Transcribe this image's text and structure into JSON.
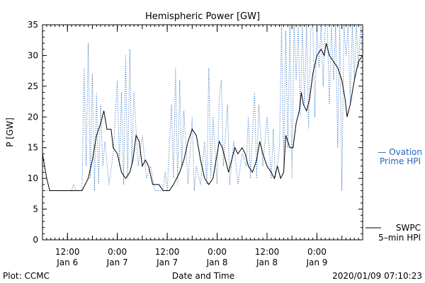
{
  "chart_data": {
    "type": "line",
    "title": "Hemispheric Power [GW]",
    "xlabel": "Date and Time",
    "ylabel": "P [GW]",
    "ylim": [
      0,
      35
    ],
    "yticks": [
      0,
      5,
      10,
      15,
      20,
      25,
      30,
      35
    ],
    "xlim": [
      "2020-01-06 06:00",
      "2020-01-09 11:00"
    ],
    "xticks": [
      {
        "t": "2020-01-06 12:00",
        "line1": "12:00",
        "line2": "Jan 6"
      },
      {
        "t": "2020-01-07 00:00",
        "line1": "0:00",
        "line2": "Jan 7"
      },
      {
        "t": "2020-01-07 12:00",
        "line1": "12:00",
        "line2": "Jan 7"
      },
      {
        "t": "2020-01-08 00:00",
        "line1": "0:00",
        "line2": "Jan 8"
      },
      {
        "t": "2020-01-08 12:00",
        "line1": "12:00",
        "line2": "Jan 8"
      },
      {
        "t": "2020-01-09 00:00",
        "line1": "0:00",
        "line2": "Jan 9"
      }
    ],
    "grid": false,
    "series": [
      {
        "name": "SWPC 5-min HPI",
        "color": "#000000",
        "style": "solid",
        "points": [
          [
            "2020-01-06 06:00",
            14
          ],
          [
            "2020-01-06 06:30",
            12
          ],
          [
            "2020-01-06 07:00",
            10
          ],
          [
            "2020-01-06 07:45",
            8
          ],
          [
            "2020-01-06 10:00",
            8
          ],
          [
            "2020-01-06 14:00",
            8
          ],
          [
            "2020-01-06 15:30",
            8
          ],
          [
            "2020-01-06 17:00",
            10
          ],
          [
            "2020-01-06 18:00",
            13
          ],
          [
            "2020-01-06 19:00",
            17
          ],
          [
            "2020-01-06 20:00",
            19
          ],
          [
            "2020-01-06 20:45",
            21
          ],
          [
            "2020-01-06 21:30",
            18
          ],
          [
            "2020-01-06 22:30",
            18
          ],
          [
            "2020-01-06 23:00",
            15
          ],
          [
            "2020-01-07 00:00",
            14
          ],
          [
            "2020-01-07 01:00",
            11
          ],
          [
            "2020-01-07 02:00",
            10
          ],
          [
            "2020-01-07 03:00",
            11
          ],
          [
            "2020-01-07 03:45",
            13
          ],
          [
            "2020-01-07 04:30",
            17
          ],
          [
            "2020-01-07 05:15",
            16
          ],
          [
            "2020-01-07 06:00",
            12
          ],
          [
            "2020-01-07 06:45",
            13
          ],
          [
            "2020-01-07 07:30",
            12
          ],
          [
            "2020-01-07 08:30",
            9
          ],
          [
            "2020-01-07 10:00",
            9
          ],
          [
            "2020-01-07 11:00",
            8
          ],
          [
            "2020-01-07 12:30",
            8
          ],
          [
            "2020-01-07 13:30",
            9
          ],
          [
            "2020-01-07 15:00",
            11
          ],
          [
            "2020-01-07 16:00",
            13
          ],
          [
            "2020-01-07 17:00",
            16
          ],
          [
            "2020-01-07 18:00",
            18
          ],
          [
            "2020-01-07 19:00",
            17
          ],
          [
            "2020-01-07 20:00",
            13
          ],
          [
            "2020-01-07 21:00",
            10
          ],
          [
            "2020-01-07 22:00",
            9
          ],
          [
            "2020-01-07 23:00",
            10
          ],
          [
            "2020-01-07 23:45",
            13
          ],
          [
            "2020-01-08 00:30",
            16
          ],
          [
            "2020-01-08 01:15",
            15
          ],
          [
            "2020-01-08 02:00",
            13
          ],
          [
            "2020-01-08 02:45",
            11
          ],
          [
            "2020-01-08 03:30",
            13
          ],
          [
            "2020-01-08 04:15",
            15
          ],
          [
            "2020-01-08 05:00",
            14
          ],
          [
            "2020-01-08 06:00",
            15
          ],
          [
            "2020-01-08 06:45",
            14
          ],
          [
            "2020-01-08 07:30",
            12
          ],
          [
            "2020-01-08 08:30",
            11
          ],
          [
            "2020-01-08 09:30",
            13
          ],
          [
            "2020-01-08 10:15",
            16
          ],
          [
            "2020-01-08 11:00",
            14
          ],
          [
            "2020-01-08 12:00",
            12
          ],
          [
            "2020-01-08 13:00",
            11
          ],
          [
            "2020-01-08 13:45",
            10
          ],
          [
            "2020-01-08 14:30",
            12
          ],
          [
            "2020-01-08 15:15",
            10
          ],
          [
            "2020-01-08 16:00",
            11
          ],
          [
            "2020-01-08 16:30",
            17
          ],
          [
            "2020-01-08 17:30",
            15
          ],
          [
            "2020-01-08 18:15",
            15
          ],
          [
            "2020-01-08 19:00",
            19
          ],
          [
            "2020-01-08 19:45",
            21
          ],
          [
            "2020-01-08 20:15",
            24
          ],
          [
            "2020-01-08 20:45",
            22
          ],
          [
            "2020-01-08 21:30",
            21
          ],
          [
            "2020-01-08 22:15",
            23
          ],
          [
            "2020-01-08 23:00",
            27
          ],
          [
            "2020-01-09 00:00",
            30
          ],
          [
            "2020-01-09 01:00",
            31
          ],
          [
            "2020-01-09 01:45",
            30
          ],
          [
            "2020-01-09 02:15",
            32
          ],
          [
            "2020-01-09 03:00",
            30
          ],
          [
            "2020-01-09 04:00",
            29
          ],
          [
            "2020-01-09 05:00",
            28
          ],
          [
            "2020-01-09 06:00",
            26
          ],
          [
            "2020-01-09 06:45",
            23
          ],
          [
            "2020-01-09 07:15",
            20
          ],
          [
            "2020-01-09 08:00",
            22
          ],
          [
            "2020-01-09 09:00",
            26
          ],
          [
            "2020-01-09 10:00",
            29
          ],
          [
            "2020-01-09 11:00",
            30
          ]
        ]
      },
      {
        "name": "Ovation Prime HPI",
        "color": "#2266bb",
        "style": "dotted",
        "points": [
          [
            "2020-01-06 06:00",
            8
          ],
          [
            "2020-01-06 13:00",
            8
          ],
          [
            "2020-01-06 13:30",
            9
          ],
          [
            "2020-01-06 14:00",
            8
          ],
          [
            "2020-01-06 15:30",
            8
          ],
          [
            "2020-01-06 16:00",
            28
          ],
          [
            "2020-01-06 16:30",
            12
          ],
          [
            "2020-01-06 17:00",
            32
          ],
          [
            "2020-01-06 17:30",
            10
          ],
          [
            "2020-01-06 18:00",
            27
          ],
          [
            "2020-01-06 18:30",
            8
          ],
          [
            "2020-01-06 19:00",
            24
          ],
          [
            "2020-01-06 19:30",
            9
          ],
          [
            "2020-01-06 20:00",
            22
          ],
          [
            "2020-01-06 20:30",
            12
          ],
          [
            "2020-01-06 21:00",
            16
          ],
          [
            "2020-01-06 22:00",
            9
          ],
          [
            "2020-01-06 23:00",
            14
          ],
          [
            "2020-01-07 00:00",
            26
          ],
          [
            "2020-01-07 00:30",
            12
          ],
          [
            "2020-01-07 01:00",
            24
          ],
          [
            "2020-01-07 01:30",
            9
          ],
          [
            "2020-01-07 02:00",
            30
          ],
          [
            "2020-01-07 02:30",
            10
          ],
          [
            "2020-01-07 03:00",
            31
          ],
          [
            "2020-01-07 03:30",
            12
          ],
          [
            "2020-01-07 04:00",
            24
          ],
          [
            "2020-01-07 05:00",
            12
          ],
          [
            "2020-01-07 06:00",
            17
          ],
          [
            "2020-01-07 07:00",
            10
          ],
          [
            "2020-01-07 08:00",
            12
          ],
          [
            "2020-01-07 09:00",
            8
          ],
          [
            "2020-01-07 10:00",
            8
          ],
          [
            "2020-01-07 11:00",
            8
          ],
          [
            "2020-01-07 11:30",
            11
          ],
          [
            "2020-01-07 12:00",
            8
          ],
          [
            "2020-01-07 13:00",
            22
          ],
          [
            "2020-01-07 13:30",
            10
          ],
          [
            "2020-01-07 14:00",
            28
          ],
          [
            "2020-01-07 14:30",
            9
          ],
          [
            "2020-01-07 15:00",
            26
          ],
          [
            "2020-01-07 15:30",
            12
          ],
          [
            "2020-01-07 16:00",
            21
          ],
          [
            "2020-01-07 17:00",
            9
          ],
          [
            "2020-01-07 18:00",
            20
          ],
          [
            "2020-01-07 18:30",
            8
          ],
          [
            "2020-01-07 19:00",
            12
          ],
          [
            "2020-01-07 20:00",
            9
          ],
          [
            "2020-01-07 21:00",
            16
          ],
          [
            "2020-01-07 21:30",
            9
          ],
          [
            "2020-01-07 22:00",
            28
          ],
          [
            "2020-01-07 22:30",
            10
          ],
          [
            "2020-01-07 23:00",
            20
          ],
          [
            "2020-01-08 00:00",
            9
          ],
          [
            "2020-01-08 00:30",
            23
          ],
          [
            "2020-01-08 01:00",
            26
          ],
          [
            "2020-01-08 01:30",
            12
          ],
          [
            "2020-01-08 02:30",
            22
          ],
          [
            "2020-01-08 03:00",
            9
          ],
          [
            "2020-01-08 04:00",
            16
          ],
          [
            "2020-01-08 05:00",
            9
          ],
          [
            "2020-01-08 06:00",
            14
          ],
          [
            "2020-01-08 07:00",
            12
          ],
          [
            "2020-01-08 07:30",
            20
          ],
          [
            "2020-01-08 08:00",
            10
          ],
          [
            "2020-01-08 09:00",
            24
          ],
          [
            "2020-01-08 09:30",
            10
          ],
          [
            "2020-01-08 10:00",
            22
          ],
          [
            "2020-01-08 11:00",
            12
          ],
          [
            "2020-01-08 12:00",
            20
          ],
          [
            "2020-01-08 13:00",
            10
          ],
          [
            "2020-01-08 13:30",
            18
          ],
          [
            "2020-01-08 14:00",
            10
          ],
          [
            "2020-01-08 15:00",
            15
          ],
          [
            "2020-01-08 15:30",
            35
          ],
          [
            "2020-01-08 16:00",
            12
          ],
          [
            "2020-01-08 16:30",
            34
          ],
          [
            "2020-01-08 17:00",
            15
          ],
          [
            "2020-01-08 17:30",
            35
          ],
          [
            "2020-01-08 18:00",
            10
          ],
          [
            "2020-01-08 18:30",
            35
          ],
          [
            "2020-01-08 19:00",
            26
          ],
          [
            "2020-01-08 19:30",
            35
          ],
          [
            "2020-01-08 20:00",
            20
          ],
          [
            "2020-01-08 20:30",
            35
          ],
          [
            "2020-01-08 21:00",
            22
          ],
          [
            "2020-01-08 21:30",
            35
          ],
          [
            "2020-01-08 22:00",
            18
          ],
          [
            "2020-01-08 22:30",
            34
          ],
          [
            "2020-01-08 23:00",
            35
          ],
          [
            "2020-01-08 23:30",
            20
          ],
          [
            "2020-01-09 00:00",
            35
          ],
          [
            "2020-01-09 00:30",
            28
          ],
          [
            "2020-01-09 01:00",
            35
          ],
          [
            "2020-01-09 01:30",
            25
          ],
          [
            "2020-01-09 02:00",
            35
          ],
          [
            "2020-01-09 02:30",
            35
          ],
          [
            "2020-01-09 03:00",
            22
          ],
          [
            "2020-01-09 03:30",
            35
          ],
          [
            "2020-01-09 04:00",
            26
          ],
          [
            "2020-01-09 04:30",
            35
          ],
          [
            "2020-01-09 05:00",
            15
          ],
          [
            "2020-01-09 05:30",
            35
          ],
          [
            "2020-01-09 06:00",
            8
          ],
          [
            "2020-01-09 06:30",
            35
          ],
          [
            "2020-01-09 07:00",
            30
          ],
          [
            "2020-01-09 07:30",
            35
          ],
          [
            "2020-01-09 08:00",
            22
          ],
          [
            "2020-01-09 08:30",
            35
          ],
          [
            "2020-01-09 09:00",
            26
          ],
          [
            "2020-01-09 09:30",
            35
          ],
          [
            "2020-01-09 10:00",
            28
          ],
          [
            "2020-01-09 10:30",
            35
          ],
          [
            "2020-01-09 11:00",
            30
          ]
        ]
      }
    ],
    "legend": {
      "ovation_dash": "— Ovation",
      "ovation_line2": "Prime HPI",
      "swpc_line1": "SWPC",
      "swpc_line2": "5–min HPI"
    }
  },
  "footer": {
    "left": "Plot: CCMC",
    "right": "2020/01/09 07:10:23"
  }
}
